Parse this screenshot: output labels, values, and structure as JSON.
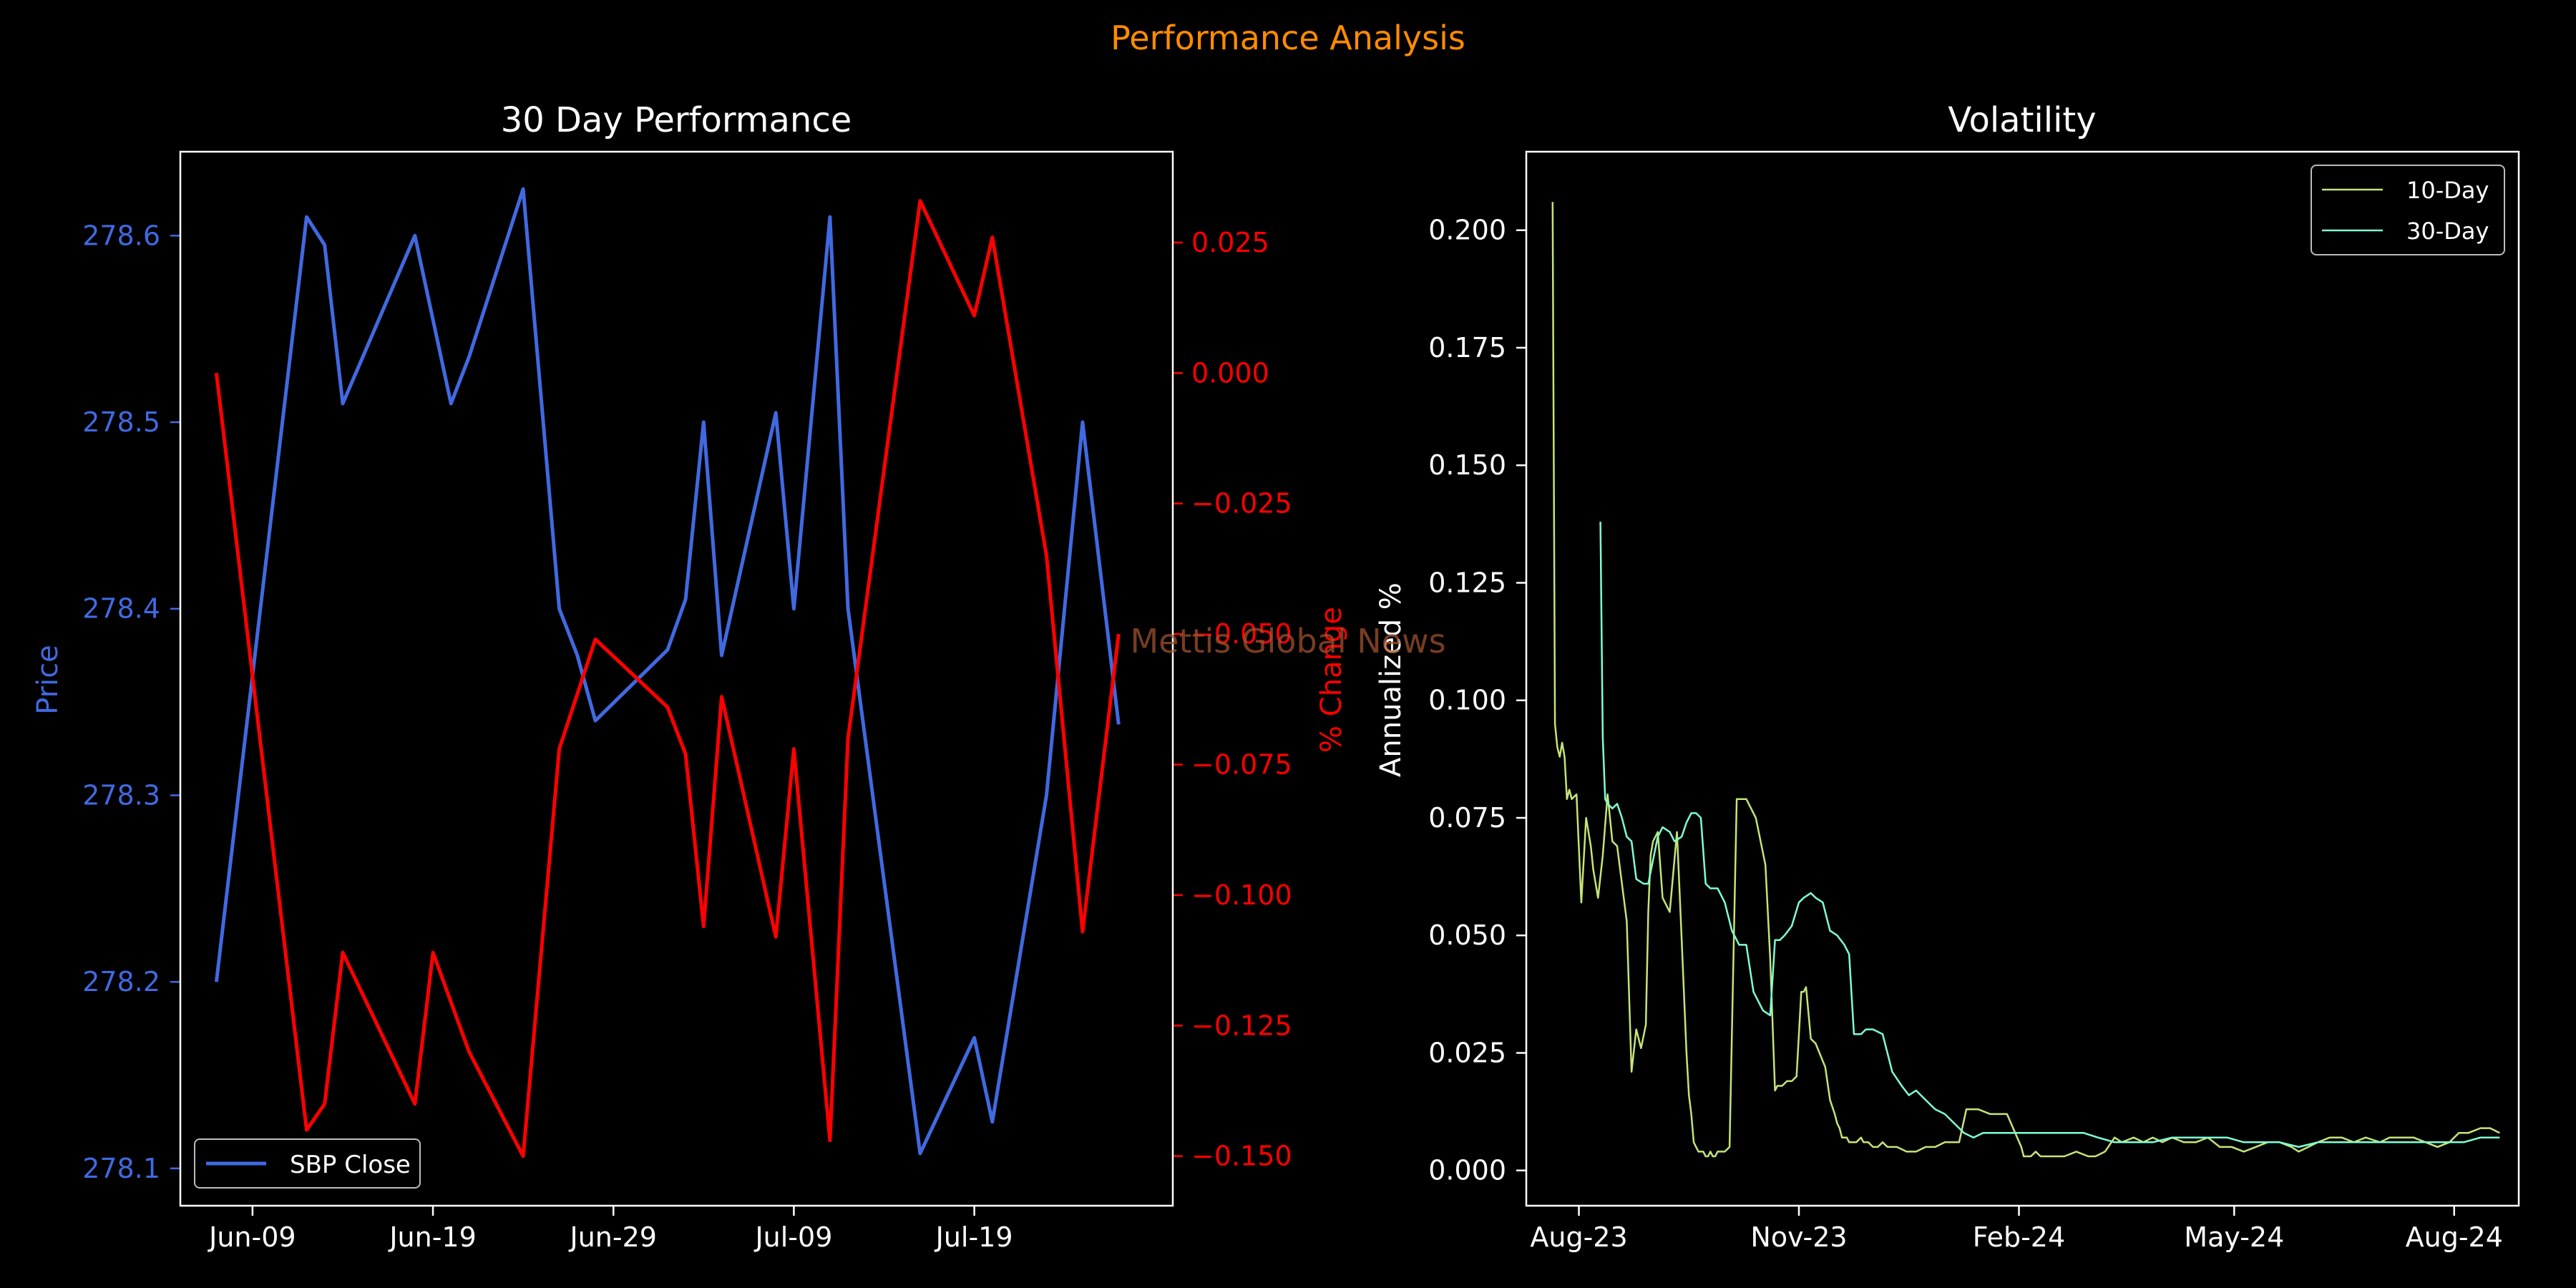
{
  "suptitle": "Performance Analysis",
  "watermark": "Mettis Global News",
  "colors": {
    "background": "#000000",
    "suptitle": "#ff8c00",
    "price": "#4169e1",
    "pct": "#ff0000",
    "vol10": "#c5e478",
    "vol30": "#7fffd4",
    "axes": "#ffffff",
    "watermark": "#a0522d"
  },
  "chart_data": [
    {
      "type": "line",
      "title": "30 Day Performance",
      "xlabel": "",
      "x_axis_type": "date",
      "xlim": [
        "2024-06-05",
        "2024-07-30"
      ],
      "xticks": [
        {
          "date": "2024-06-09",
          "label": "Jun-09"
        },
        {
          "date": "2024-06-19",
          "label": "Jun-19"
        },
        {
          "date": "2024-06-29",
          "label": "Jun-29"
        },
        {
          "date": "2024-07-09",
          "label": "Jul-09"
        },
        {
          "date": "2024-07-19",
          "label": "Jul-19"
        }
      ],
      "left_axis": {
        "label": "Price",
        "ylim": [
          278.08,
          278.645
        ],
        "ticks": [
          278.1,
          278.2,
          278.3,
          278.4,
          278.5,
          278.6
        ],
        "tick_labels": [
          "278.1",
          "278.2",
          "278.3",
          "278.4",
          "278.5",
          "278.6"
        ]
      },
      "right_axis": {
        "label": "% Change",
        "ylim": [
          -0.1595,
          0.0424
        ],
        "ticks": [
          0.025,
          0.0,
          -0.025,
          -0.05,
          -0.075,
          -0.1,
          -0.125,
          -0.15
        ],
        "tick_labels": [
          "0.025",
          "0.000",
          "−0.025",
          "−0.050",
          "−0.075",
          "−0.100",
          "−0.125",
          "−0.150"
        ]
      },
      "legend": {
        "position": "lower-left",
        "entries": [
          "SBP Close"
        ]
      },
      "series": [
        {
          "name": "SBP Close",
          "axis": "left",
          "x": [
            "2024-06-07",
            "2024-06-12",
            "2024-06-13",
            "2024-06-14",
            "2024-06-18",
            "2024-06-20",
            "2024-06-21",
            "2024-06-24",
            "2024-06-26",
            "2024-06-27",
            "2024-06-28",
            "2024-07-02",
            "2024-07-03",
            "2024-07-04",
            "2024-07-05",
            "2024-07-08",
            "2024-07-09",
            "2024-07-11",
            "2024-07-12",
            "2024-07-16",
            "2024-07-19",
            "2024-07-20",
            "2024-07-23",
            "2024-07-25",
            "2024-07-27"
          ],
          "values": [
            278.2,
            278.61,
            278.595,
            278.51,
            278.6,
            278.51,
            278.535,
            278.625,
            278.4,
            278.375,
            278.34,
            278.378,
            278.405,
            278.5,
            278.375,
            278.505,
            278.4,
            278.61,
            278.4,
            278.108,
            278.17,
            278.125,
            278.3,
            278.5,
            278.338
          ]
        },
        {
          "name": "% Change",
          "axis": "right",
          "x": [
            "2024-06-07",
            "2024-06-12",
            "2024-06-13",
            "2024-06-14",
            "2024-06-18",
            "2024-06-19",
            "2024-06-21",
            "2024-06-24",
            "2024-06-26",
            "2024-06-28",
            "2024-07-02",
            "2024-07-03",
            "2024-07-04",
            "2024-07-05",
            "2024-07-08",
            "2024-07-09",
            "2024-07-11",
            "2024-07-12",
            "2024-07-16",
            "2024-07-19",
            "2024-07-20",
            "2024-07-23",
            "2024-07-25",
            "2024-07-27"
          ],
          "values": [
            0.0,
            -0.145,
            -0.14,
            -0.111,
            -0.14,
            -0.111,
            -0.13,
            -0.15,
            -0.072,
            -0.051,
            -0.064,
            -0.073,
            -0.106,
            -0.062,
            -0.108,
            -0.072,
            -0.147,
            -0.07,
            0.033,
            0.011,
            0.026,
            -0.035,
            -0.107,
            -0.05
          ]
        }
      ]
    },
    {
      "type": "line",
      "title": "Volatility",
      "xlabel": "",
      "ylabel": "Annualized %",
      "x_axis_type": "date",
      "xlim": [
        "2023-07-10",
        "2024-08-28"
      ],
      "ylim": [
        -0.0075,
        0.2167
      ],
      "yticks": [
        0.0,
        0.025,
        0.05,
        0.075,
        0.1,
        0.125,
        0.15,
        0.175,
        0.2
      ],
      "ytick_labels": [
        "0.000",
        "0.025",
        "0.050",
        "0.075",
        "0.100",
        "0.125",
        "0.150",
        "0.175",
        "0.200"
      ],
      "xticks": [
        {
          "date": "2023-08-01",
          "label": "Aug-23"
        },
        {
          "date": "2023-11-01",
          "label": "Nov-23"
        },
        {
          "date": "2024-02-01",
          "label": "Feb-24"
        },
        {
          "date": "2024-05-01",
          "label": "May-24"
        },
        {
          "date": "2024-08-01",
          "label": "Aug-24"
        }
      ],
      "legend": {
        "position": "top-right",
        "entries": [
          "10-Day",
          "30-Day"
        ]
      },
      "series": [
        {
          "name": "10-Day",
          "x": [
            "2023-07-21",
            "2023-07-22",
            "2023-07-23",
            "2023-07-24",
            "2023-07-25",
            "2023-07-26",
            "2023-07-27",
            "2023-07-28",
            "2023-07-29",
            "2023-07-31",
            "2023-08-02",
            "2023-08-04",
            "2023-08-05",
            "2023-08-06",
            "2023-08-07",
            "2023-08-09",
            "2023-08-11",
            "2023-08-13",
            "2023-08-15",
            "2023-08-17",
            "2023-08-19",
            "2023-08-21",
            "2023-08-23",
            "2023-08-25",
            "2023-08-27",
            "2023-08-29",
            "2023-08-30",
            "2023-08-31",
            "2023-09-01",
            "2023-09-02",
            "2023-09-03",
            "2023-09-05",
            "2023-09-08",
            "2023-09-11",
            "2023-09-13",
            "2023-09-15",
            "2023-09-16",
            "2023-09-17",
            "2023-09-18",
            "2023-09-19",
            "2023-09-20",
            "2023-09-21",
            "2023-09-22",
            "2023-09-23",
            "2023-09-24",
            "2023-09-25",
            "2023-09-26",
            "2023-09-27",
            "2023-09-28",
            "2023-09-29",
            "2023-10-01",
            "2023-10-03",
            "2023-10-06",
            "2023-10-10",
            "2023-10-14",
            "2023-10-18",
            "2023-10-20",
            "2023-10-22",
            "2023-10-23",
            "2023-10-25",
            "2023-10-27",
            "2023-10-29",
            "2023-10-31",
            "2023-11-02",
            "2023-11-03",
            "2023-11-04",
            "2023-11-06",
            "2023-11-08",
            "2023-11-12",
            "2023-11-14",
            "2023-11-16",
            "2023-11-17",
            "2023-11-18",
            "2023-11-19",
            "2023-11-20",
            "2023-11-21",
            "2023-11-22",
            "2023-11-25",
            "2023-11-27",
            "2023-11-28",
            "2023-11-30",
            "2023-12-02",
            "2023-12-04",
            "2023-12-06",
            "2023-12-08",
            "2023-12-12",
            "2023-12-16",
            "2023-12-20",
            "2023-12-24",
            "2023-12-28",
            "2024-01-01",
            "2024-01-05",
            "2024-01-07",
            "2024-01-10",
            "2024-01-15",
            "2024-01-20",
            "2024-01-24",
            "2024-01-27",
            "2024-02-02",
            "2024-02-03",
            "2024-02-06",
            "2024-02-08",
            "2024-02-10",
            "2024-02-15",
            "2024-02-20",
            "2024-02-25",
            "2024-03-01",
            "2024-03-04",
            "2024-03-08",
            "2024-03-12",
            "2024-03-15",
            "2024-03-20",
            "2024-03-24",
            "2024-03-28",
            "2024-04-01",
            "2024-04-05",
            "2024-04-10",
            "2024-04-15",
            "2024-04-20",
            "2024-04-25",
            "2024-04-30",
            "2024-05-05",
            "2024-05-10",
            "2024-05-15",
            "2024-05-20",
            "2024-05-25",
            "2024-05-28",
            "2024-06-01",
            "2024-06-05",
            "2024-06-10",
            "2024-06-15",
            "2024-06-20",
            "2024-06-25",
            "2024-07-01",
            "2024-07-05",
            "2024-07-10",
            "2024-07-15",
            "2024-07-20",
            "2024-07-25",
            "2024-07-30",
            "2024-08-03",
            "2024-08-07",
            "2024-08-12",
            "2024-08-16",
            "2024-08-20"
          ],
          "values": [
            0.206,
            0.095,
            0.09,
            0.088,
            0.091,
            0.088,
            0.079,
            0.081,
            0.079,
            0.08,
            0.057,
            0.075,
            0.072,
            0.069,
            0.064,
            0.058,
            0.067,
            0.08,
            0.07,
            0.069,
            0.061,
            0.053,
            0.021,
            0.03,
            0.026,
            0.031,
            0.055,
            0.067,
            0.07,
            0.071,
            0.072,
            0.058,
            0.055,
            0.072,
            0.049,
            0.025,
            0.016,
            0.012,
            0.006,
            0.005,
            0.004,
            0.004,
            0.004,
            0.003,
            0.003,
            0.004,
            0.003,
            0.003,
            0.004,
            0.004,
            0.004,
            0.005,
            0.079,
            0.079,
            0.075,
            0.065,
            0.045,
            0.017,
            0.018,
            0.018,
            0.019,
            0.019,
            0.02,
            0.038,
            0.038,
            0.039,
            0.028,
            0.027,
            0.022,
            0.015,
            0.012,
            0.01,
            0.009,
            0.007,
            0.007,
            0.007,
            0.006,
            0.006,
            0.007,
            0.006,
            0.006,
            0.005,
            0.005,
            0.006,
            0.005,
            0.005,
            0.004,
            0.004,
            0.005,
            0.005,
            0.006,
            0.006,
            0.006,
            0.013,
            0.013,
            0.012,
            0.012,
            0.012,
            0.005,
            0.003,
            0.003,
            0.004,
            0.003,
            0.003,
            0.003,
            0.004,
            0.003,
            0.003,
            0.004,
            0.007,
            0.006,
            0.007,
            0.006,
            0.007,
            0.006,
            0.007,
            0.006,
            0.006,
            0.007,
            0.005,
            0.005,
            0.004,
            0.005,
            0.006,
            0.006,
            0.005,
            0.004,
            0.005,
            0.006,
            0.007,
            0.007,
            0.006,
            0.007,
            0.006,
            0.007,
            0.007,
            0.007,
            0.006,
            0.005,
            0.006,
            0.008,
            0.008,
            0.009,
            0.009,
            0.008
          ]
        },
        {
          "name": "30-Day",
          "x": [
            "2023-08-10",
            "2023-08-11",
            "2023-08-12",
            "2023-08-13",
            "2023-08-15",
            "2023-08-17",
            "2023-08-19",
            "2023-08-20",
            "2023-08-21",
            "2023-08-23",
            "2023-08-25",
            "2023-08-28",
            "2023-08-30",
            "2023-09-01",
            "2023-09-03",
            "2023-09-05",
            "2023-09-08",
            "2023-09-10",
            "2023-09-13",
            "2023-09-15",
            "2023-09-17",
            "2023-09-19",
            "2023-09-21",
            "2023-09-23",
            "2023-09-25",
            "2023-09-28",
            "2023-10-01",
            "2023-10-04",
            "2023-10-07",
            "2023-10-10",
            "2023-10-13",
            "2023-10-17",
            "2023-10-20",
            "2023-10-22",
            "2023-10-24",
            "2023-10-26",
            "2023-10-29",
            "2023-11-01",
            "2023-11-03",
            "2023-11-06",
            "2023-11-08",
            "2023-11-11",
            "2023-11-14",
            "2023-11-17",
            "2023-11-20",
            "2023-11-22",
            "2023-11-24",
            "2023-11-27",
            "2023-11-29",
            "2023-12-02",
            "2023-12-06",
            "2023-12-10",
            "2023-12-14",
            "2023-12-17",
            "2023-12-20",
            "2023-12-24",
            "2023-12-28",
            "2024-01-01",
            "2024-01-05",
            "2024-01-09",
            "2024-01-13",
            "2024-01-17",
            "2024-01-21",
            "2024-01-25",
            "2024-01-30",
            "2024-02-05",
            "2024-02-12",
            "2024-02-20",
            "2024-02-28",
            "2024-03-05",
            "2024-03-12",
            "2024-03-20",
            "2024-03-28",
            "2024-04-05",
            "2024-04-12",
            "2024-04-20",
            "2024-04-28",
            "2024-05-05",
            "2024-05-12",
            "2024-05-20",
            "2024-05-28",
            "2024-06-05",
            "2024-06-12",
            "2024-06-20",
            "2024-06-28",
            "2024-07-05",
            "2024-07-12",
            "2024-07-20",
            "2024-07-28",
            "2024-08-05",
            "2024-08-12",
            "2024-08-20"
          ],
          "values": [
            0.138,
            0.092,
            0.079,
            0.078,
            0.077,
            0.078,
            0.075,
            0.073,
            0.071,
            0.07,
            0.062,
            0.061,
            0.061,
            0.066,
            0.071,
            0.073,
            0.072,
            0.07,
            0.071,
            0.074,
            0.076,
            0.076,
            0.075,
            0.061,
            0.06,
            0.06,
            0.057,
            0.051,
            0.048,
            0.048,
            0.038,
            0.034,
            0.033,
            0.049,
            0.049,
            0.05,
            0.052,
            0.057,
            0.058,
            0.059,
            0.058,
            0.057,
            0.051,
            0.05,
            0.048,
            0.046,
            0.029,
            0.029,
            0.03,
            0.03,
            0.029,
            0.021,
            0.018,
            0.016,
            0.017,
            0.015,
            0.013,
            0.012,
            0.01,
            0.008,
            0.007,
            0.008,
            0.008,
            0.008,
            0.008,
            0.008,
            0.008,
            0.008,
            0.008,
            0.007,
            0.006,
            0.006,
            0.006,
            0.007,
            0.007,
            0.007,
            0.007,
            0.006,
            0.006,
            0.006,
            0.005,
            0.006,
            0.006,
            0.006,
            0.006,
            0.006,
            0.006,
            0.006,
            0.006,
            0.006,
            0.007,
            0.007
          ]
        }
      ]
    }
  ]
}
